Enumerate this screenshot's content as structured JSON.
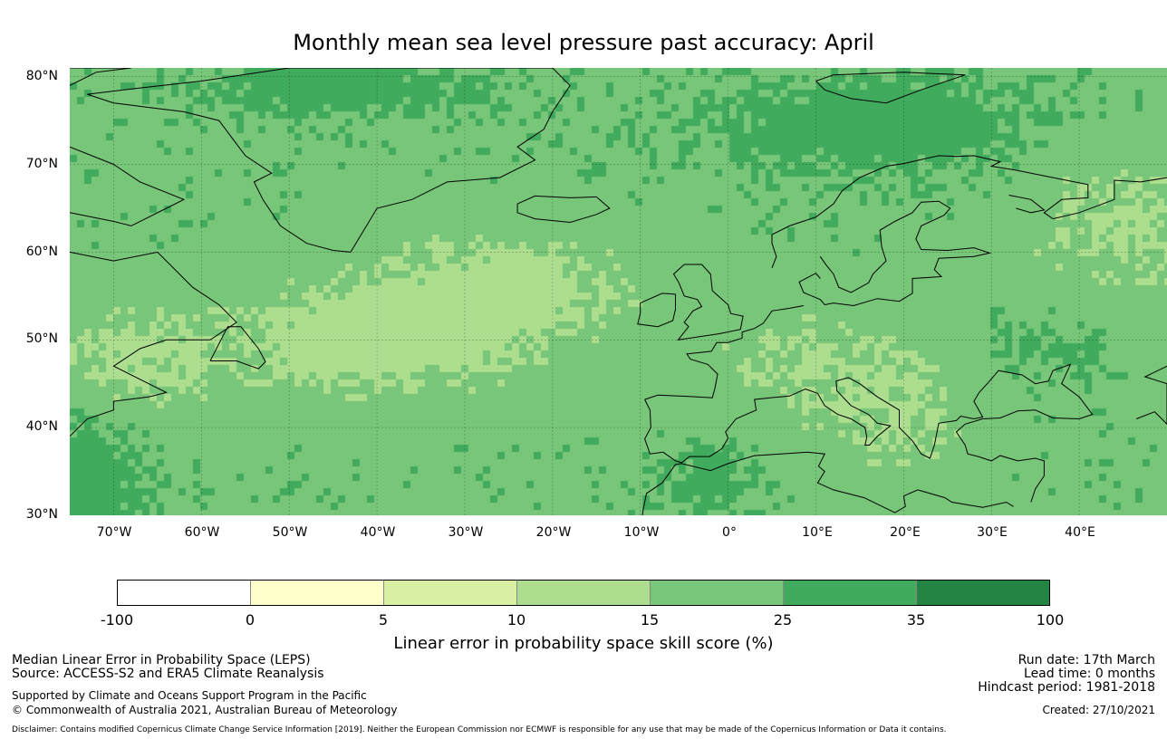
{
  "title": "Monthly mean sea level pressure past accuracy: April",
  "map": {
    "lat_labels": [
      "80°N",
      "70°N",
      "60°N",
      "50°N",
      "40°N",
      "30°N"
    ],
    "lon_labels": [
      "70°W",
      "60°W",
      "50°W",
      "40°W",
      "30°W",
      "20°W",
      "10°W",
      "0°",
      "10°E",
      "20°E",
      "30°E",
      "40°E"
    ],
    "lat_range": [
      30,
      81
    ],
    "lon_range": [
      -75,
      50
    ]
  },
  "legend": {
    "ticks": [
      "-100",
      "0",
      "5",
      "10",
      "15",
      "25",
      "35",
      "100"
    ],
    "colors": [
      "#ffffff",
      "#ffffcc",
      "#d9f0a3",
      "#addd8e",
      "#78c679",
      "#41ab5d",
      "#238443"
    ],
    "label": "Linear error in probability space skill score (%)"
  },
  "footer": {
    "left_line1": "Median Linear Error in Probability Space (LEPS)",
    "left_line2": "Source: ACCESS-S2 and ERA5 Climate Reanalysis",
    "left_line3": "Supported by Climate and Oceans Support Program in the Pacific",
    "left_line4": "© Commonwealth of Australia 2021, Australian Bureau of Meteorology",
    "right_line1": "Run date: 17th March",
    "right_line2": "Lead time: 0 months",
    "right_line3": "Hindcast period: 1981-2018",
    "right_line4": "Created: 27/10/2021",
    "disclaimer": "Disclaimer: Contains modified Copernicus Climate Change Service Information [2019]. Neither the European Commission nor ECMWF is responsible for any use that may be made of the Copernicus Information or Data it contains."
  }
}
